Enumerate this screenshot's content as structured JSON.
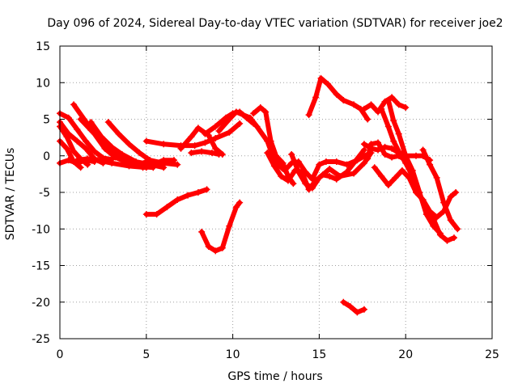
{
  "chart_data": {
    "type": "scatter",
    "title": "Day 096 of 2024, Sidereal Day-to-day VTEC variation (SDTVAR) for receiver joe2",
    "xlabel": "GPS time / hours",
    "ylabel": "SDTVAR / TECUs",
    "xlim": [
      0,
      25
    ],
    "ylim": [
      -25,
      15
    ],
    "xticks": [
      0,
      5,
      10,
      15,
      20,
      25
    ],
    "yticks": [
      -25,
      -20,
      -15,
      -10,
      -5,
      0,
      5,
      10,
      15
    ],
    "grid": true,
    "marker": "+",
    "color": "#ff0000",
    "series": [
      {
        "name": "trace-1",
        "points": [
          [
            0,
            5.8
          ],
          [
            0.5,
            5.2
          ],
          [
            1.0,
            3.6
          ],
          [
            1.5,
            2.0
          ],
          [
            2.0,
            0.6
          ],
          [
            2.5,
            -0.3
          ],
          [
            3.0,
            -0.5
          ]
        ]
      },
      {
        "name": "trace-2",
        "points": [
          [
            0,
            4.6
          ],
          [
            0.5,
            3.0
          ],
          [
            1.0,
            2.0
          ],
          [
            1.5,
            1.0
          ],
          [
            2.0,
            -0.4
          ],
          [
            2.5,
            -1.0
          ]
        ]
      },
      {
        "name": "trace-3",
        "points": [
          [
            0,
            4.0
          ],
          [
            0.4,
            2.6
          ],
          [
            0.8,
            0.6
          ],
          [
            1.2,
            -0.4
          ],
          [
            1.6,
            -1.2
          ]
        ]
      },
      {
        "name": "trace-4",
        "points": [
          [
            0,
            2.0
          ],
          [
            0.4,
            1.0
          ],
          [
            0.8,
            -0.8
          ],
          [
            1.2,
            -1.6
          ]
        ]
      },
      {
        "name": "trace-5",
        "points": [
          [
            0,
            -1.0
          ],
          [
            0.5,
            -0.6
          ],
          [
            1.0,
            -1.0
          ],
          [
            1.5,
            -0.6
          ],
          [
            2.0,
            -0.8
          ]
        ]
      },
      {
        "name": "trace-6",
        "points": [
          [
            0.8,
            7.0
          ],
          [
            1.4,
            5.0
          ],
          [
            2.0,
            3.0
          ],
          [
            2.6,
            1.0
          ],
          [
            3.2,
            -0.2
          ],
          [
            4.0,
            -1.0
          ],
          [
            4.8,
            -1.6
          ]
        ]
      },
      {
        "name": "trace-7",
        "points": [
          [
            1.2,
            5.0
          ],
          [
            1.8,
            3.5
          ],
          [
            2.5,
            2.0
          ],
          [
            3.2,
            0.5
          ],
          [
            4.0,
            -0.8
          ],
          [
            4.8,
            -1.5
          ],
          [
            5.4,
            -1.6
          ]
        ]
      },
      {
        "name": "trace-8",
        "points": [
          [
            1.8,
            4.6
          ],
          [
            2.4,
            2.6
          ],
          [
            3.0,
            1.2
          ],
          [
            3.6,
            0.2
          ],
          [
            4.4,
            -0.8
          ],
          [
            5.2,
            -1.2
          ],
          [
            6.0,
            -1.6
          ]
        ]
      },
      {
        "name": "trace-9",
        "points": [
          [
            2.8,
            4.6
          ],
          [
            3.4,
            3.0
          ],
          [
            4.0,
            1.6
          ],
          [
            4.6,
            0.4
          ],
          [
            5.2,
            -0.6
          ],
          [
            6.0,
            -1.0
          ],
          [
            6.8,
            -1.2
          ]
        ]
      },
      {
        "name": "trace-10",
        "points": [
          [
            1.0,
            -0.6
          ],
          [
            1.6,
            -0.4
          ],
          [
            2.2,
            -0.6
          ],
          [
            3.0,
            -1.0
          ],
          [
            4.0,
            -1.4
          ],
          [
            5.0,
            -1.6
          ],
          [
            6.0,
            -0.6
          ],
          [
            6.6,
            -0.6
          ]
        ]
      },
      {
        "name": "trace-11",
        "points": [
          [
            4.6,
            -1.2
          ],
          [
            5.2,
            -0.6
          ],
          [
            5.8,
            -1.0
          ],
          [
            6.2,
            -0.8
          ]
        ]
      },
      {
        "name": "trace-12",
        "points": [
          [
            5.0,
            2.0
          ],
          [
            6.0,
            1.6
          ],
          [
            7.0,
            1.4
          ],
          [
            7.8,
            1.4
          ],
          [
            8.4,
            1.8
          ],
          [
            9.0,
            2.4
          ],
          [
            9.8,
            3.2
          ],
          [
            10.4,
            4.4
          ]
        ]
      },
      {
        "name": "trace-13",
        "points": [
          [
            7.0,
            1.0
          ],
          [
            7.6,
            2.6
          ],
          [
            8.0,
            3.8
          ],
          [
            8.6,
            2.8
          ],
          [
            9.0,
            1.0
          ],
          [
            9.4,
            0.2
          ]
        ]
      },
      {
        "name": "trace-14",
        "points": [
          [
            7.6,
            0.4
          ],
          [
            8.2,
            0.6
          ],
          [
            8.8,
            0.4
          ],
          [
            9.2,
            0.2
          ]
        ]
      },
      {
        "name": "trace-15",
        "points": [
          [
            8.4,
            3.0
          ],
          [
            9.0,
            4.0
          ],
          [
            9.6,
            5.2
          ],
          [
            10.0,
            5.8
          ],
          [
            10.4,
            6.0
          ],
          [
            10.8,
            5.2
          ],
          [
            11.2,
            4.4
          ]
        ]
      },
      {
        "name": "trace-16",
        "points": [
          [
            9.2,
            3.4
          ],
          [
            9.8,
            5.0
          ],
          [
            10.2,
            6.0
          ],
          [
            10.6,
            5.6
          ],
          [
            11.0,
            5.2
          ],
          [
            11.4,
            4.0
          ],
          [
            12.0,
            2.0
          ],
          [
            12.4,
            -0.6
          ],
          [
            12.8,
            -1.4
          ]
        ]
      },
      {
        "name": "trace-17",
        "points": [
          [
            11.2,
            5.8
          ],
          [
            11.6,
            6.6
          ],
          [
            11.9,
            6.0
          ],
          [
            12.2,
            2.0
          ],
          [
            12.5,
            0.0
          ],
          [
            12.9,
            -1.0
          ],
          [
            13.2,
            -2.8
          ],
          [
            13.5,
            -3.8
          ]
        ]
      },
      {
        "name": "trace-18",
        "points": [
          [
            12.0,
            0.4
          ],
          [
            12.4,
            -1.4
          ],
          [
            12.8,
            -2.8
          ],
          [
            13.2,
            -3.4
          ],
          [
            13.6,
            -2.0
          ],
          [
            14.0,
            -2.2
          ],
          [
            14.4,
            -4.6
          ],
          [
            14.8,
            -3.4
          ],
          [
            15.2,
            -2.6
          ],
          [
            15.6,
            -2.8
          ],
          [
            16.0,
            -3.2
          ],
          [
            16.6,
            -2.2
          ],
          [
            17.0,
            -1.0
          ],
          [
            17.6,
            0.8
          ]
        ]
      },
      {
        "name": "trace-19",
        "points": [
          [
            12.6,
            -1.2
          ],
          [
            13.0,
            -2.0
          ],
          [
            13.4,
            -1.0
          ],
          [
            13.8,
            -0.8
          ],
          [
            14.2,
            -2.2
          ],
          [
            14.6,
            -3.2
          ],
          [
            15.0,
            -1.2
          ],
          [
            15.4,
            -0.8
          ],
          [
            16.0,
            -0.8
          ],
          [
            16.6,
            -1.2
          ],
          [
            17.2,
            -0.6
          ],
          [
            17.8,
            0.2
          ]
        ]
      },
      {
        "name": "trace-20",
        "points": [
          [
            13.4,
            0.2
          ],
          [
            13.8,
            -2.2
          ],
          [
            14.2,
            -3.8
          ],
          [
            14.6,
            -4.4
          ],
          [
            15.0,
            -3.0
          ],
          [
            15.6,
            -1.8
          ],
          [
            16.2,
            -2.8
          ],
          [
            17.0,
            -2.4
          ],
          [
            17.6,
            -1.0
          ],
          [
            18.0,
            0.4
          ]
        ]
      },
      {
        "name": "trace-21",
        "points": [
          [
            14.4,
            5.6
          ],
          [
            14.8,
            8.0
          ],
          [
            15.1,
            10.6
          ],
          [
            15.5,
            9.8
          ],
          [
            16.0,
            8.4
          ],
          [
            16.4,
            7.6
          ],
          [
            17.0,
            7.0
          ],
          [
            17.4,
            6.4
          ],
          [
            17.8,
            5.0
          ]
        ]
      },
      {
        "name": "trace-22",
        "points": [
          [
            17.6,
            1.6
          ],
          [
            18.0,
            1.0
          ],
          [
            18.4,
            0.8
          ],
          [
            18.8,
            1.2
          ],
          [
            19.2,
            1.0
          ],
          [
            19.6,
            0.4
          ],
          [
            20.0,
            0.0
          ],
          [
            20.6,
            0.0
          ],
          [
            21.0,
            0.0
          ],
          [
            21.4,
            -0.6
          ]
        ]
      },
      {
        "name": "trace-23",
        "points": [
          [
            17.8,
            -0.4
          ],
          [
            18.0,
            1.6
          ],
          [
            18.4,
            1.8
          ],
          [
            18.8,
            0.2
          ],
          [
            19.2,
            -0.2
          ],
          [
            19.6,
            0.0
          ],
          [
            20.0,
            -0.6
          ]
        ]
      },
      {
        "name": "trace-24",
        "points": [
          [
            17.6,
            6.4
          ],
          [
            18.0,
            7.0
          ],
          [
            18.4,
            6.0
          ],
          [
            18.8,
            7.4
          ],
          [
            19.2,
            8.0
          ],
          [
            19.6,
            7.0
          ],
          [
            20.0,
            6.6
          ]
        ]
      },
      {
        "name": "trace-25",
        "points": [
          [
            18.6,
            6.4
          ],
          [
            19.0,
            4.0
          ],
          [
            19.3,
            2.0
          ],
          [
            19.6,
            0.6
          ],
          [
            20.0,
            -1.0
          ],
          [
            20.4,
            -2.8
          ],
          [
            20.8,
            -5.4
          ],
          [
            21.2,
            -7.0
          ],
          [
            21.6,
            -8.6
          ],
          [
            22.0,
            -10.8
          ],
          [
            22.4,
            -11.6
          ],
          [
            22.8,
            -11.2
          ]
        ]
      },
      {
        "name": "trace-26",
        "points": [
          [
            19.0,
            7.6
          ],
          [
            19.3,
            4.8
          ],
          [
            19.6,
            3.0
          ],
          [
            20.0,
            0.0
          ],
          [
            20.4,
            -2.0
          ],
          [
            20.8,
            -5.0
          ],
          [
            21.2,
            -8.0
          ],
          [
            21.6,
            -9.6
          ],
          [
            22.0,
            -10.6
          ]
        ]
      },
      {
        "name": "trace-27",
        "points": [
          [
            18.2,
            -1.6
          ],
          [
            18.6,
            -2.8
          ],
          [
            19.0,
            -4.0
          ],
          [
            19.4,
            -3.0
          ],
          [
            19.8,
            -2.0
          ],
          [
            20.2,
            -3.0
          ],
          [
            20.6,
            -5.0
          ],
          [
            21.0,
            -6.0
          ],
          [
            21.4,
            -7.6
          ],
          [
            21.8,
            -8.4
          ],
          [
            22.2,
            -7.6
          ],
          [
            22.6,
            -5.6
          ],
          [
            22.9,
            -5.0
          ]
        ]
      },
      {
        "name": "trace-28",
        "points": [
          [
            21.0,
            0.8
          ],
          [
            21.4,
            -1.2
          ],
          [
            21.8,
            -3.0
          ],
          [
            22.2,
            -6.4
          ],
          [
            22.6,
            -8.8
          ],
          [
            23.0,
            -10.0
          ]
        ]
      },
      {
        "name": "trace-29",
        "points": [
          [
            5.0,
            -8.0
          ],
          [
            5.6,
            -8.0
          ],
          [
            6.2,
            -7.0
          ],
          [
            6.8,
            -6.0
          ],
          [
            7.4,
            -5.4
          ],
          [
            8.0,
            -5.0
          ],
          [
            8.5,
            -4.6
          ]
        ]
      },
      {
        "name": "trace-30",
        "points": [
          [
            8.2,
            -10.4
          ],
          [
            8.6,
            -12.4
          ],
          [
            9.0,
            -13.0
          ],
          [
            9.4,
            -12.6
          ],
          [
            9.8,
            -9.6
          ],
          [
            10.2,
            -7.0
          ],
          [
            10.4,
            -6.4
          ]
        ]
      },
      {
        "name": "trace-31",
        "points": [
          [
            16.4,
            -20.0
          ],
          [
            16.8,
            -20.6
          ],
          [
            17.2,
            -21.4
          ],
          [
            17.6,
            -21.0
          ]
        ]
      }
    ]
  }
}
